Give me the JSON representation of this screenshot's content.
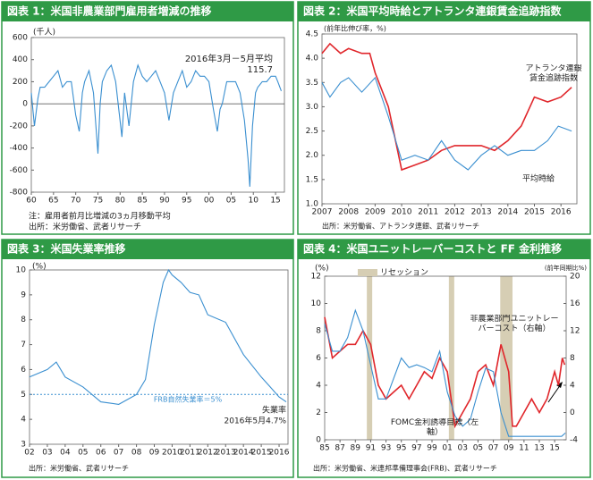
{
  "chart_data": [
    {
      "type": "line",
      "title": "図表 1：米国非農業部門雇用者増減の推移",
      "y_label": "(千人)",
      "annotations": [
        "2016年3月－5月平均",
        "115.7"
      ],
      "notes": [
        "注：雇用者前月比増減の3ヵ月移動平均",
        "出所：米労働省、武者リサーチ"
      ],
      "xlim": [
        1960,
        2017
      ],
      "ylim": [
        -800,
        600
      ],
      "yticks": [
        -800,
        -600,
        -400,
        -200,
        0,
        200,
        400,
        600
      ],
      "xticks": [
        {
          "value": 1960,
          "label": "60"
        },
        {
          "value": 1965,
          "label": "65"
        },
        {
          "value": 1970,
          "label": "70"
        },
        {
          "value": 1975,
          "label": "75"
        },
        {
          "value": 1980,
          "label": "80"
        },
        {
          "value": 1985,
          "label": "85"
        },
        {
          "value": 1990,
          "label": "90"
        },
        {
          "value": 1995,
          "label": "95"
        },
        {
          "value": 2000,
          "label": "00"
        },
        {
          "value": 2005,
          "label": "05"
        },
        {
          "value": 2010,
          "label": "10"
        },
        {
          "value": 2015,
          "label": "15"
        }
      ],
      "zero_line": true,
      "series": [
        {
          "color": "#3a8fd0",
          "x": [
            1960,
            1960.7,
            1961.5,
            1962,
            1963,
            1964,
            1965,
            1966,
            1967,
            1968,
            1969,
            1970,
            1970.8,
            1971.5,
            1972,
            1973,
            1974,
            1975,
            1975.5,
            1976,
            1977,
            1978,
            1979,
            1980.4,
            1981,
            1982,
            1983,
            1984,
            1985,
            1986,
            1987,
            1988,
            1989,
            1990,
            1991,
            1992,
            1993,
            1994,
            1995,
            1996,
            1997,
            1998,
            1999,
            2000,
            2001,
            2001.9,
            2002.5,
            2003,
            2004,
            2005,
            2006,
            2007,
            2008,
            2008.8,
            2009.2,
            2009.8,
            2010.5,
            2011,
            2012,
            2013,
            2014,
            2015,
            2015.5,
            2016.3
          ],
          "values": [
            100,
            -200,
            50,
            150,
            150,
            200,
            250,
            300,
            150,
            200,
            200,
            -100,
            -250,
            100,
            200,
            300,
            100,
            -450,
            0,
            200,
            300,
            350,
            200,
            -300,
            100,
            -200,
            200,
            350,
            250,
            200,
            250,
            300,
            200,
            100,
            -150,
            100,
            200,
            300,
            150,
            200,
            300,
            250,
            250,
            200,
            -50,
            -250,
            -50,
            0,
            200,
            200,
            200,
            100,
            -150,
            -500,
            -750,
            -200,
            100,
            150,
            200,
            200,
            250,
            250,
            200,
            115.7
          ]
        }
      ]
    },
    {
      "type": "line",
      "title": "図表 2：米国平均時給とアトランタ連銀賃金追跡指数",
      "y_label": "(前年比伸び率，%)",
      "source": "出所：米労働省、アトランタ連銀、武者リサーチ",
      "xlim": [
        2007,
        2016.6
      ],
      "ylim": [
        1,
        4.5
      ],
      "yticks": [
        {
          "value": 1,
          "label": "1.0"
        },
        1.5,
        {
          "value": 2,
          "label": "2.0"
        },
        2.5,
        {
          "value": 3,
          "label": "3.0"
        },
        3.5,
        {
          "value": 4,
          "label": "4.0"
        },
        4.5
      ],
      "xticks": [
        2007,
        2008,
        2009,
        2010,
        2011,
        2012,
        2013,
        2014,
        2015,
        2016
      ],
      "series": [
        {
          "name": "アトランタ連銀賃金追跡指数",
          "color": "#e0262b",
          "x": [
            2007,
            2007.3,
            2007.7,
            2008,
            2008.5,
            2008.8,
            2009,
            2009.5,
            2010,
            2010.5,
            2011,
            2011.5,
            2012,
            2012.5,
            2013,
            2013.5,
            2014,
            2014.5,
            2015,
            2015.5,
            2016,
            2016.4
          ],
          "values": [
            4.1,
            4.3,
            4.1,
            4.2,
            4.1,
            4.1,
            3.7,
            3.0,
            1.7,
            1.8,
            1.9,
            2.1,
            2.2,
            2.2,
            2.2,
            2.1,
            2.3,
            2.6,
            3.2,
            3.1,
            3.2,
            3.4
          ]
        },
        {
          "name": "平均時給",
          "color": "#3a8fd0",
          "x": [
            2007,
            2007.3,
            2007.7,
            2008,
            2008.5,
            2009,
            2009.5,
            2010,
            2010.5,
            2011,
            2011.5,
            2012,
            2012.5,
            2013,
            2013.5,
            2014,
            2014.5,
            2015,
            2015.5,
            2015.9,
            2016.4
          ],
          "values": [
            3.5,
            3.2,
            3.5,
            3.6,
            3.3,
            3.6,
            2.8,
            1.9,
            2.0,
            1.9,
            2.3,
            1.9,
            1.7,
            2.0,
            2.2,
            2.0,
            2.1,
            2.1,
            2.3,
            2.6,
            2.5
          ]
        }
      ]
    },
    {
      "type": "line",
      "title": "図表 3：米国失業率推移",
      "y_label": "(%)",
      "annotations": [
        "2016年5月4.7%"
      ],
      "source": "出所：米労働省、武者リサーチ",
      "reference_line": {
        "value": 5,
        "label": "FRB自然失業率＝5%"
      },
      "xlim": [
        2002,
        2016.5
      ],
      "ylim": [
        3,
        10
      ],
      "yticks": [
        3,
        4,
        5,
        6,
        7,
        8,
        9,
        10
      ],
      "xticks": [
        {
          "value": 2002,
          "label": "02"
        },
        {
          "value": 2003,
          "label": "03"
        },
        {
          "value": 2004,
          "label": "04"
        },
        {
          "value": 2005,
          "label": "05"
        },
        {
          "value": 2006,
          "label": "06"
        },
        {
          "value": 2007,
          "label": "07"
        },
        {
          "value": 2008,
          "label": "08"
        },
        {
          "value": 2009,
          "label": "09"
        },
        2010,
        2011,
        2012,
        2013,
        2014,
        2015,
        2016
      ],
      "series": [
        {
          "name": "失業率",
          "color": "#3a8fd0",
          "x": [
            2002,
            2003,
            2003.5,
            2004,
            2005,
            2006,
            2007,
            2008,
            2008.5,
            2009,
            2009.5,
            2009.8,
            2010,
            2010.5,
            2011,
            2011.5,
            2012,
            2013,
            2014,
            2015,
            2015.5,
            2016,
            2016.4
          ],
          "values": [
            5.7,
            6.0,
            6.3,
            5.7,
            5.3,
            4.7,
            4.6,
            5.0,
            5.6,
            7.8,
            9.5,
            10.0,
            9.8,
            9.5,
            9.1,
            9.0,
            8.2,
            7.9,
            6.6,
            5.7,
            5.3,
            4.9,
            4.7
          ]
        }
      ]
    },
    {
      "type": "line",
      "title": "図表 4：米国ユニットレーバーコストと FF 金利推移",
      "y_label": "(%)",
      "y2_label": "(前年同期比%)",
      "source": "出所：米労働省、米連邦準備理事会(FRB)、武者リサーチ",
      "recession_label": "リセッション",
      "recession_color": "#d6ceb4",
      "recessions": [
        [
          1990.5,
          1991.2
        ],
        [
          2001.2,
          2001.9
        ],
        [
          2007.9,
          2009.5
        ]
      ],
      "xlim": [
        1985,
        2016.5
      ],
      "ylim": [
        0,
        12
      ],
      "yticks": [
        0,
        2,
        4,
        6,
        8,
        10,
        12
      ],
      "y2lim": [
        -4,
        20
      ],
      "y2ticks": [
        -4,
        0,
        4,
        8,
        12,
        16,
        20
      ],
      "xticks": [
        {
          "value": 1985,
          "label": "85"
        },
        {
          "value": 1987,
          "label": "87"
        },
        {
          "value": 1989,
          "label": "89"
        },
        {
          "value": 1991,
          "label": "91"
        },
        {
          "value": 1993,
          "label": "93"
        },
        {
          "value": 1995,
          "label": "95"
        },
        {
          "value": 1997,
          "label": "97"
        },
        {
          "value": 1999,
          "label": "99"
        },
        {
          "value": 2001,
          "label": "01"
        },
        {
          "value": 2003,
          "label": "03"
        },
        {
          "value": 2005,
          "label": "05"
        },
        {
          "value": 2007,
          "label": "07"
        },
        {
          "value": 2009,
          "label": "09"
        },
        {
          "value": 2011,
          "label": "11"
        },
        {
          "value": 2013,
          "label": "13"
        },
        {
          "value": 2015,
          "label": "15"
        }
      ],
      "series": [
        {
          "name": "非農業部門ユニットレーバーコスト（右軸）",
          "color": "#e0262b",
          "axis": "y2",
          "x": [
            1985,
            1986,
            1987,
            1988,
            1989,
            1990,
            1991,
            1992,
            1993,
            1994,
            1995,
            1996,
            1997,
            1998,
            1999,
            2000,
            2001,
            2002,
            2003,
            2004,
            2005,
            2006,
            2007,
            2008,
            2009,
            2009.5,
            2010,
            2011,
            2012,
            2013,
            2014,
            2015,
            2015.5,
            2016,
            2016.3
          ],
          "values": [
            14,
            8,
            9,
            10,
            10,
            12,
            10,
            4,
            2,
            3,
            4,
            2,
            4,
            6,
            5,
            8,
            6,
            -2,
            0,
            2,
            6,
            7,
            4,
            10,
            6,
            -2,
            -2,
            0,
            2,
            0,
            2,
            6,
            4,
            8,
            7
          ]
        },
        {
          "name": "FOMC金利誘導目標（左軸）",
          "color": "#3a8fd0",
          "x": [
            1985,
            1986,
            1987,
            1988,
            1989,
            1990,
            1991,
            1992,
            1993,
            1994,
            1995,
            1996,
            1997,
            1998,
            1999,
            2000,
            2001,
            2002,
            2003,
            2004,
            2005,
            2006,
            2007,
            2008,
            2009,
            2015.9,
            2016.4
          ],
          "values": [
            8.5,
            6.5,
            6.5,
            7.5,
            9.5,
            8.0,
            5.5,
            3.0,
            3.0,
            4.5,
            6.0,
            5.3,
            5.5,
            5.3,
            5.0,
            6.5,
            3.5,
            1.75,
            1.0,
            1.5,
            3.5,
            5.25,
            5.0,
            2.0,
            0.25,
            0.25,
            0.5
          ]
        }
      ]
    }
  ]
}
